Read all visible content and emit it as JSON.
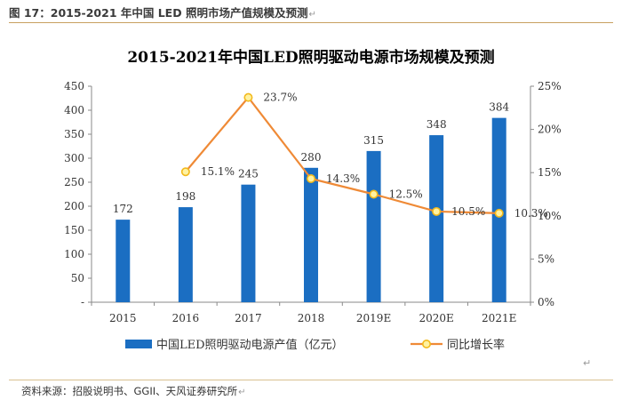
{
  "caption": "图 17：2015-2021 年中国 LED 照明市场产值规模及预测",
  "source": "资料来源：招股说明书、GGII、天风证券研究所",
  "colors": {
    "bar": "#1b6ec2",
    "line": "#ef8a36",
    "marker_fill": "#fff2a0",
    "marker_stroke": "#f2b91c",
    "caption_rule": "#c8a060"
  },
  "chart_data": {
    "type": "bar+line",
    "title": "2015-2021年中国LED照明驱动电源市场规模及预测",
    "categories": [
      "2015",
      "2016",
      "2017",
      "2018",
      "2019E",
      "2020E",
      "2021E"
    ],
    "series": [
      {
        "name": "中国LED照明驱动电源产值（亿元）",
        "type": "bar",
        "axis": "left",
        "values": [
          172,
          198,
          245,
          280,
          315,
          348,
          384
        ],
        "labels": [
          "172",
          "198",
          "245",
          "280",
          "315",
          "348",
          "384"
        ]
      },
      {
        "name": "同比增长率",
        "type": "line",
        "axis": "right",
        "values": [
          null,
          15.1,
          23.7,
          14.3,
          12.5,
          10.5,
          10.3
        ],
        "labels": [
          null,
          "15.1%",
          "23.7%",
          "14.3%",
          "12.5%",
          "10.5%",
          "10.3%"
        ]
      }
    ],
    "y_left": {
      "min": 0,
      "max": 450,
      "ticks": [
        0,
        50,
        100,
        150,
        200,
        250,
        300,
        350,
        400,
        450
      ],
      "tick_labels": [
        "-",
        "50",
        "100",
        "150",
        "200",
        "250",
        "300",
        "350",
        "400",
        "450"
      ]
    },
    "y_right": {
      "min": 0,
      "max": 25,
      "ticks": [
        0,
        5,
        10,
        15,
        20,
        25
      ],
      "tick_labels": [
        "0%",
        "5%",
        "10%",
        "15%",
        "20%",
        "25%"
      ]
    },
    "grid": false,
    "legend_position": "bottom"
  }
}
